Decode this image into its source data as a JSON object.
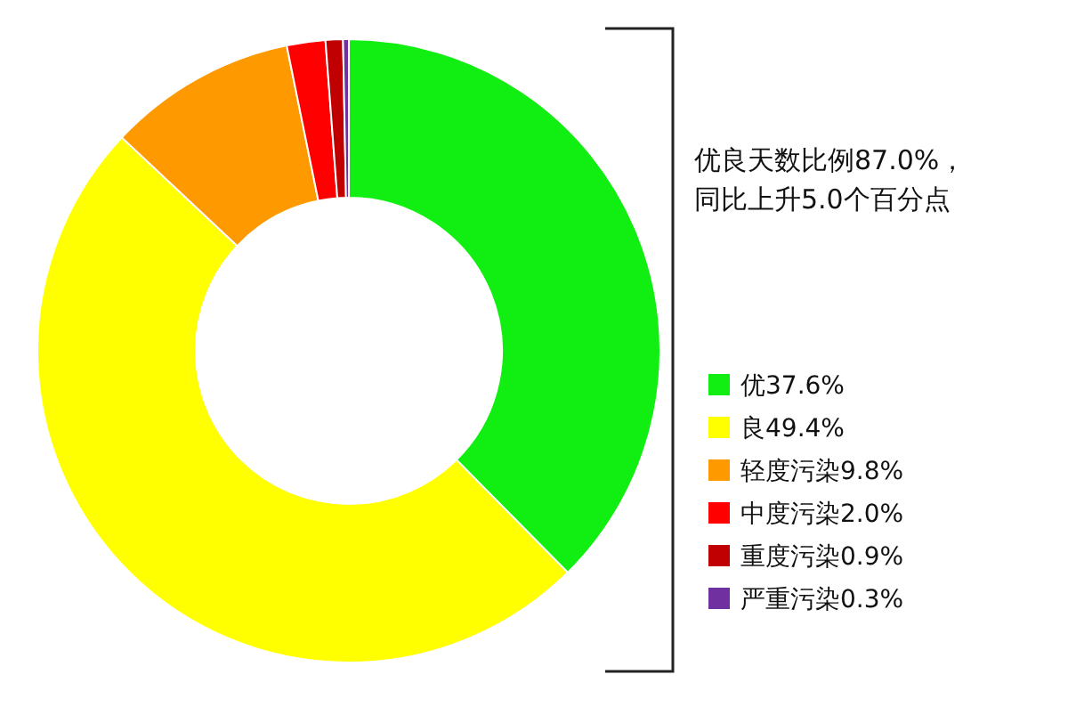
{
  "chart_data": {
    "type": "donut",
    "categories": [
      "优",
      "良",
      "轻度污染",
      "中度污染",
      "重度污染",
      "严重污染"
    ],
    "values": [
      37.6,
      49.4,
      9.8,
      2.0,
      0.9,
      0.3
    ],
    "colors": [
      "#11ee11",
      "#ffff00",
      "#ff9900",
      "#ff0000",
      "#c00000",
      "#7030a0"
    ],
    "value_labels": [
      "37.6%",
      "49.4%",
      "9.8%",
      "2.0%",
      "0.9%",
      "0.3%"
    ],
    "annotations": [
      "优良天数比例87.0%，",
      "同比上升5.0个百分点"
    ],
    "legend": "right"
  }
}
